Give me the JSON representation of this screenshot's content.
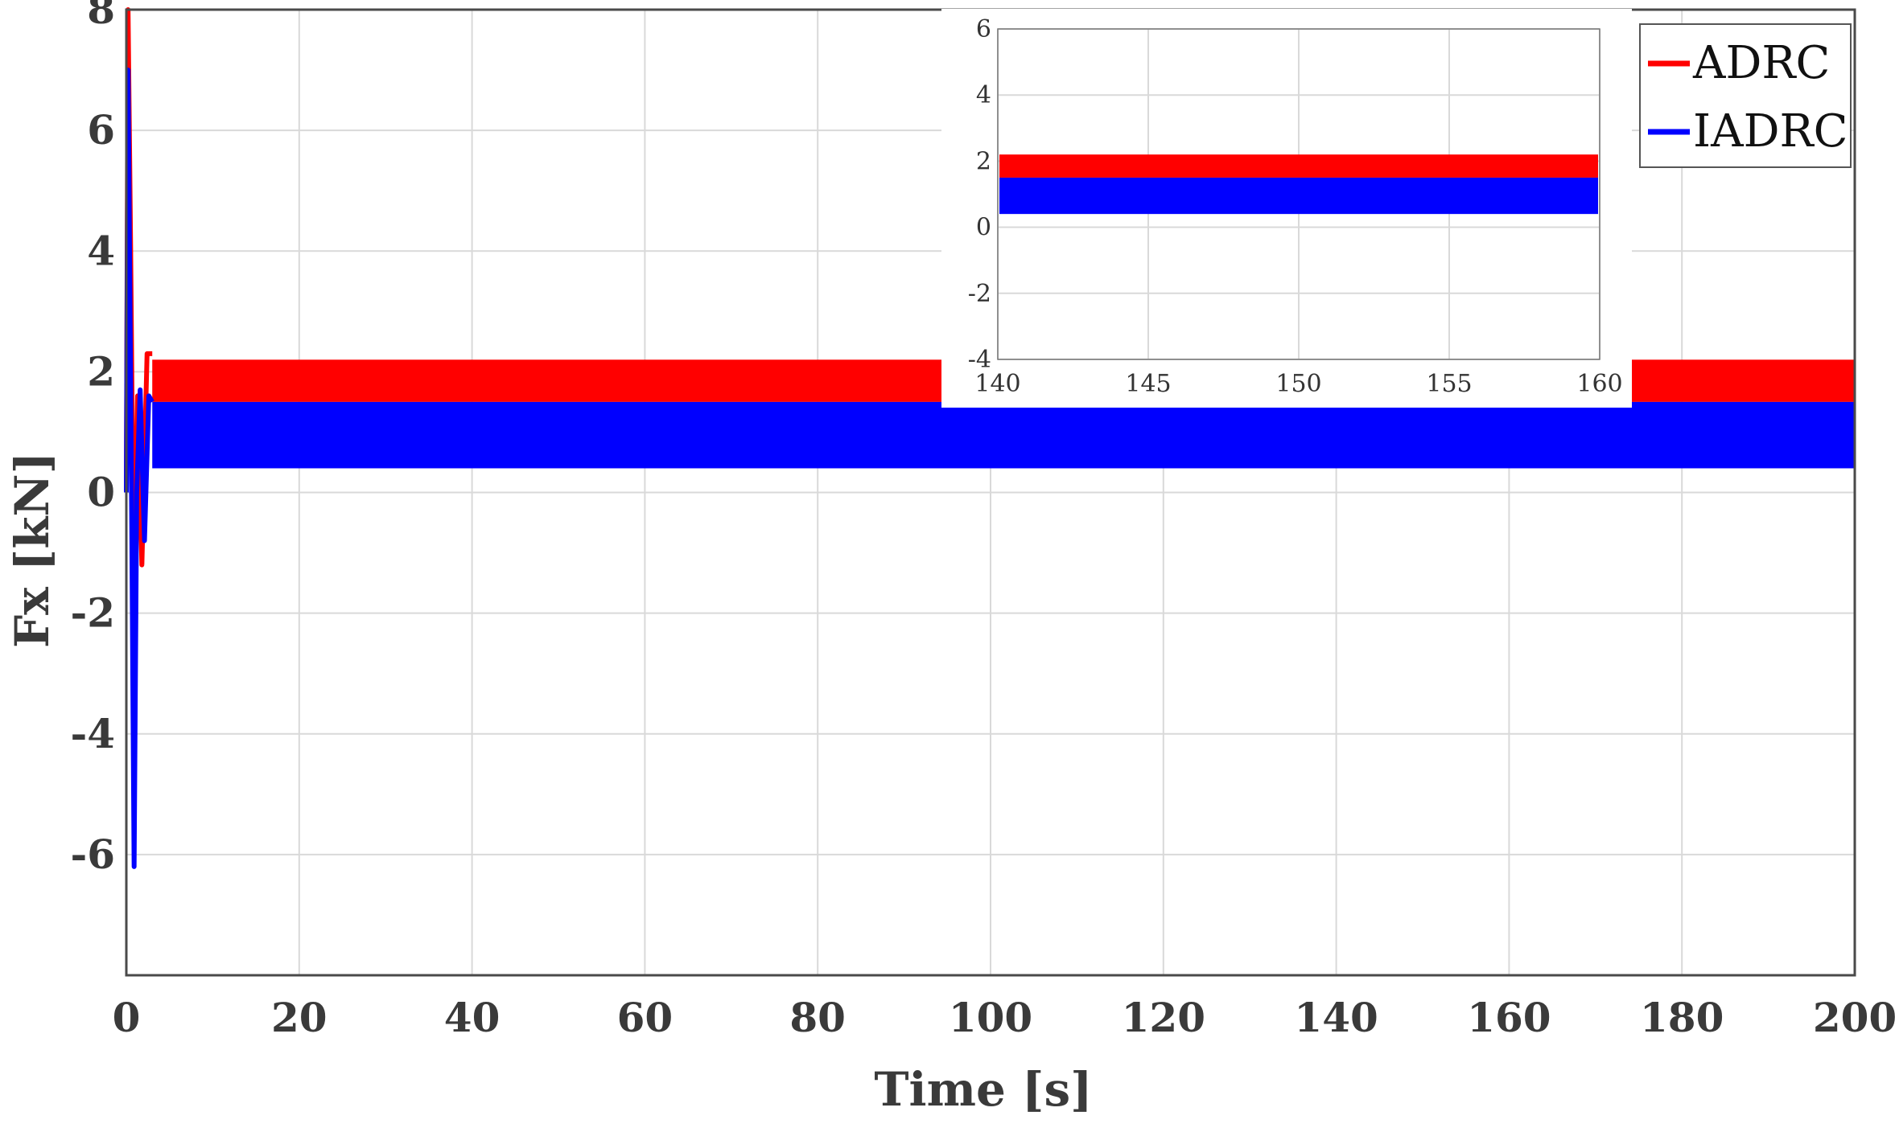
{
  "chart_data": [
    {
      "type": "line",
      "title": "",
      "xlabel": "Time [s]",
      "ylabel": "Fx [kN]",
      "xlim": [
        0,
        200
      ],
      "ylim": [
        -8,
        8
      ],
      "x_ticks": [
        0,
        20,
        40,
        60,
        80,
        100,
        120,
        140,
        160,
        180,
        200
      ],
      "y_ticks": [
        -6,
        -4,
        -2,
        0,
        2,
        4,
        6,
        8
      ],
      "grid": true,
      "legend_position": "top-right",
      "series": [
        {
          "name": "ADRC",
          "color": "#ff0000",
          "transient": [
            [
              0,
              0
            ],
            [
              0.2,
              8
            ],
            [
              0.5,
              4
            ],
            [
              0.9,
              -2.2
            ],
            [
              1.3,
              1.6
            ],
            [
              1.8,
              -1.2
            ],
            [
              2.4,
              2.3
            ],
            [
              3.0,
              2.3
            ]
          ],
          "steady_band": {
            "t_start": 3,
            "t_end": 200,
            "min": 1.5,
            "max": 2.2
          }
        },
        {
          "name": "IADRC",
          "color": "#0000ff",
          "transient": [
            [
              0,
              0
            ],
            [
              0.2,
              7
            ],
            [
              0.6,
              0
            ],
            [
              0.9,
              -6.2
            ],
            [
              1.2,
              0
            ],
            [
              1.6,
              1.7
            ],
            [
              2.1,
              -0.8
            ],
            [
              2.6,
              1.6
            ],
            [
              3.0,
              1.5
            ]
          ],
          "steady_band": {
            "t_start": 3,
            "t_end": 200,
            "min": 0.4,
            "max": 1.5
          }
        }
      ]
    },
    {
      "type": "line",
      "title": "",
      "xlabel": "",
      "ylabel": "",
      "xlim": [
        140,
        160
      ],
      "ylim": [
        -4,
        6
      ],
      "x_ticks": [
        140,
        145,
        150,
        155,
        160
      ],
      "y_ticks": [
        -4,
        -2,
        0,
        2,
        4,
        6
      ],
      "grid": true,
      "series": [
        {
          "color": "#ff0000",
          "steady_band": {
            "min": 1.5,
            "max": 2.2
          }
        },
        {
          "color": "#0000ff",
          "steady_band": {
            "min": 0.4,
            "max": 1.5
          }
        }
      ]
    }
  ]
}
